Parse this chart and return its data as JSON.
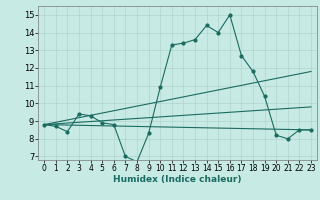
{
  "xlabel": "Humidex (Indice chaleur)",
  "xlim": [
    -0.5,
    23.5
  ],
  "ylim": [
    6.8,
    15.5
  ],
  "xticks": [
    0,
    1,
    2,
    3,
    4,
    5,
    6,
    7,
    8,
    9,
    10,
    11,
    12,
    13,
    14,
    15,
    16,
    17,
    18,
    19,
    20,
    21,
    22,
    23
  ],
  "yticks": [
    7,
    8,
    9,
    10,
    11,
    12,
    13,
    14,
    15
  ],
  "background_color": "#c8eae4",
  "grid_color": "#b0d4ce",
  "line_color": "#1a6b60",
  "curve1_x": [
    0,
    1,
    2,
    3,
    4,
    5,
    6,
    7,
    8,
    9,
    10,
    11,
    12,
    13,
    14,
    15,
    16,
    17,
    18,
    19,
    20,
    21,
    22,
    23
  ],
  "curve1_y": [
    8.8,
    8.7,
    8.4,
    9.4,
    9.3,
    8.9,
    8.8,
    7.0,
    6.7,
    8.3,
    10.9,
    13.3,
    13.4,
    13.6,
    14.4,
    14.0,
    15.0,
    12.7,
    11.8,
    10.4,
    8.2,
    8.0,
    8.5,
    8.5
  ],
  "line1_x": [
    0,
    23
  ],
  "line1_y": [
    8.8,
    11.8
  ],
  "line2_x": [
    0,
    23
  ],
  "line2_y": [
    8.8,
    9.8
  ],
  "line3_x": [
    0,
    23
  ],
  "line3_y": [
    8.8,
    8.5
  ]
}
